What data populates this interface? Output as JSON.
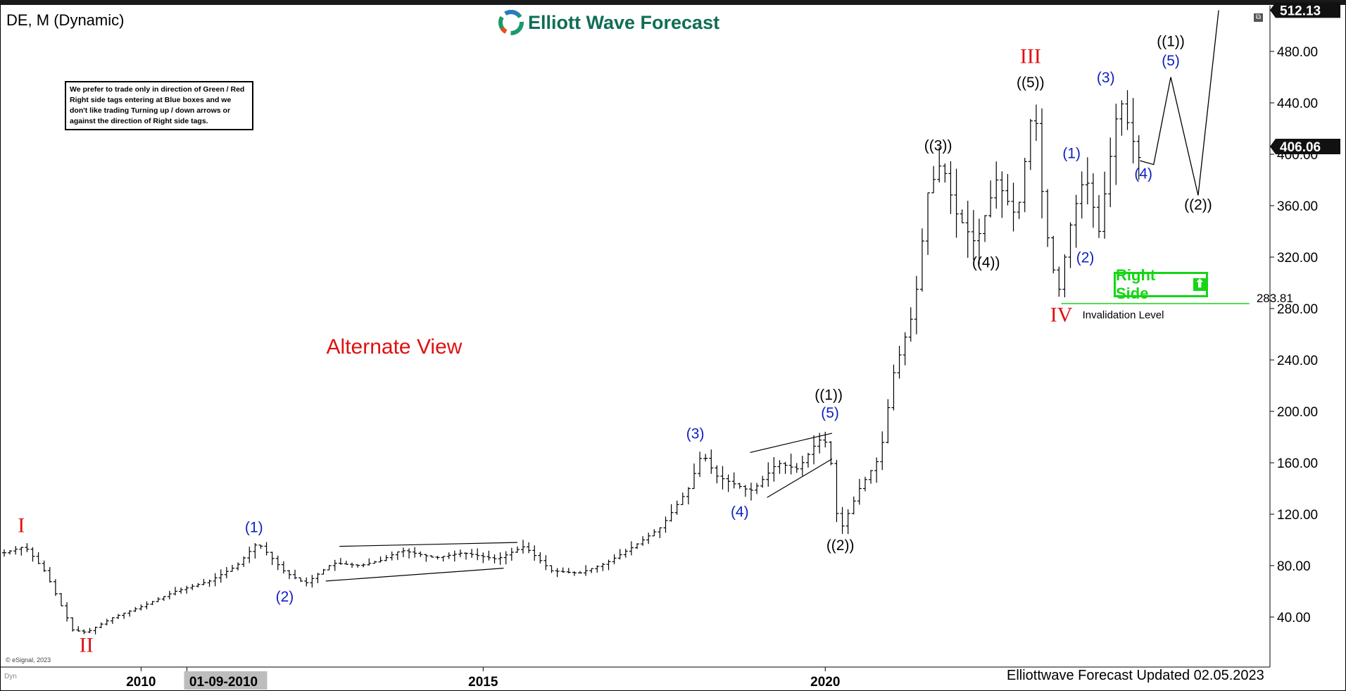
{
  "header": {
    "symbol": "DE, M (Dynamic)",
    "logo_text": "Elliott Wave Forecast"
  },
  "note": {
    "text": "We prefer to trade only in direction of Green / Red Right side tags entering at Blue boxes and we don't like trading Turning up / down arrows or against the direction of Right side tags."
  },
  "right_side_tag": {
    "label": "Right Side",
    "icon": "up-arrow-icon",
    "color": "#15d615"
  },
  "footer": {
    "copyright": "© eSignal, 2023",
    "dyn": "Dyn",
    "updated": "Elliottwave Forecast Updated 02.05.2023"
  },
  "colors": {
    "degree_red": "#e01010",
    "wave_blue": "#1020c0",
    "wave_black": "#000000",
    "invalidation_green": "#15d615",
    "bars": "#000000"
  },
  "chart_data": {
    "type": "line",
    "chart_kind": "monthly price bar chart (OHLC) with Elliott Wave labels",
    "title": "Alternate View",
    "xlabel": "",
    "ylabel": "",
    "x_ticks": [
      "2010",
      "01-09-2010",
      "2015",
      "2020"
    ],
    "x_tick_values": [
      2010.0,
      2010.67,
      2015.0,
      2020.0
    ],
    "xlim": [
      2008.0,
      2026.5
    ],
    "ylim": [
      0,
      520
    ],
    "y_ticks": [
      40,
      80,
      120,
      160,
      200,
      240,
      280,
      320,
      360,
      400,
      440,
      480
    ],
    "y_tick_labels": [
      "40.00",
      "80.00",
      "120.00",
      "160.00",
      "200.00",
      "240.00",
      "280.00",
      "320.00",
      "360.00",
      "400.00",
      "440.00",
      "480.00"
    ],
    "price_tags": [
      {
        "value": 512.13,
        "label": "512.13"
      },
      {
        "value": 406.06,
        "label": "406.06"
      }
    ],
    "price_path": [
      [
        2008.0,
        90
      ],
      [
        2008.3,
        95
      ],
      [
        2008.6,
        75
      ],
      [
        2009.0,
        30
      ],
      [
        2009.2,
        28
      ],
      [
        2009.6,
        40
      ],
      [
        2010.0,
        48
      ],
      [
        2010.5,
        60
      ],
      [
        2011.0,
        68
      ],
      [
        2011.4,
        80
      ],
      [
        2011.7,
        98
      ],
      [
        2012.1,
        75
      ],
      [
        2012.4,
        66
      ],
      [
        2012.8,
        82
      ],
      [
        2013.2,
        80
      ],
      [
        2013.5,
        84
      ],
      [
        2013.8,
        92
      ],
      [
        2014.3,
        86
      ],
      [
        2014.7,
        90
      ],
      [
        2015.2,
        85
      ],
      [
        2015.6,
        95
      ],
      [
        2016.0,
        76
      ],
      [
        2016.4,
        74
      ],
      [
        2016.8,
        82
      ],
      [
        2017.2,
        95
      ],
      [
        2017.6,
        110
      ],
      [
        2018.0,
        140
      ],
      [
        2018.2,
        168
      ],
      [
        2018.4,
        150
      ],
      [
        2018.9,
        138
      ],
      [
        2019.0,
        142
      ],
      [
        2019.3,
        160
      ],
      [
        2019.6,
        155
      ],
      [
        2019.9,
        178
      ],
      [
        2020.05,
        175
      ],
      [
        2020.2,
        105
      ],
      [
        2020.5,
        140
      ],
      [
        2020.8,
        165
      ],
      [
        2021.0,
        230
      ],
      [
        2021.3,
        280
      ],
      [
        2021.5,
        370
      ],
      [
        2021.7,
        395
      ],
      [
        2021.9,
        355
      ],
      [
        2022.2,
        330
      ],
      [
        2022.5,
        380
      ],
      [
        2022.8,
        350
      ],
      [
        2023.05,
        445
      ],
      [
        2023.2,
        350
      ],
      [
        2023.4,
        290
      ],
      [
        2023.6,
        350
      ],
      [
        2023.8,
        385
      ],
      [
        2024.0,
        340
      ],
      [
        2024.2,
        410
      ],
      [
        2024.3,
        445
      ],
      [
        2024.5,
        410
      ],
      [
        2024.6,
        395
      ]
    ],
    "projection_path": [
      [
        2024.8,
        392
      ],
      [
        2025.05,
        460
      ],
      [
        2025.45,
        368
      ],
      [
        2025.75,
        512
      ]
    ],
    "trendlines": [
      {
        "from": [
          2012.7,
          68
        ],
        "to": [
          2015.3,
          78
        ]
      },
      {
        "from": [
          2012.9,
          95
        ],
        "to": [
          2015.5,
          98
        ]
      },
      {
        "from": [
          2018.9,
          168
        ],
        "to": [
          2020.1,
          183
        ]
      },
      {
        "from": [
          2019.15,
          133
        ],
        "to": [
          2020.1,
          163
        ]
      }
    ],
    "invalidation": {
      "value": 283.81,
      "value_label": "283.81",
      "label": "Invalidation Level",
      "x_from": 2023.45,
      "x_to": 2026.2
    },
    "wave_labels": [
      {
        "text": "I",
        "x": 2008.25,
        "y": 106,
        "color": "red",
        "size": "big"
      },
      {
        "text": "II",
        "x": 2009.2,
        "y": 13,
        "color": "red",
        "size": "big"
      },
      {
        "text": "(1)",
        "x": 2011.65,
        "y": 106,
        "color": "blue"
      },
      {
        "text": "(2)",
        "x": 2012.1,
        "y": 52,
        "color": "blue"
      },
      {
        "text": "(3)",
        "x": 2018.1,
        "y": 179,
        "color": "blue"
      },
      {
        "text": "(4)",
        "x": 2018.75,
        "y": 118,
        "color": "blue"
      },
      {
        "text": "((1))",
        "x": 2020.05,
        "y": 209,
        "color": "black"
      },
      {
        "text": "(5)",
        "x": 2020.07,
        "y": 195,
        "color": "blue"
      },
      {
        "text": "((2))",
        "x": 2020.22,
        "y": 92,
        "color": "black"
      },
      {
        "text": "((3))",
        "x": 2021.65,
        "y": 403,
        "color": "black"
      },
      {
        "text": "((4))",
        "x": 2022.35,
        "y": 312,
        "color": "black"
      },
      {
        "text": "III",
        "x": 2023.0,
        "y": 471,
        "color": "red",
        "size": "big"
      },
      {
        "text": "((5))",
        "x": 2023.0,
        "y": 452,
        "color": "black"
      },
      {
        "text": "IV",
        "x": 2023.45,
        "y": 270,
        "color": "red",
        "size": "big"
      },
      {
        "text": "(1)",
        "x": 2023.6,
        "y": 397,
        "color": "blue"
      },
      {
        "text": "(2)",
        "x": 2023.8,
        "y": 316,
        "color": "blue"
      },
      {
        "text": "(3)",
        "x": 2024.1,
        "y": 456,
        "color": "blue"
      },
      {
        "text": "(4)",
        "x": 2024.65,
        "y": 381,
        "color": "blue"
      },
      {
        "text": "((1))",
        "x": 2025.05,
        "y": 484,
        "color": "black"
      },
      {
        "text": "(5)",
        "x": 2025.05,
        "y": 469,
        "color": "blue"
      },
      {
        "text": "((2))",
        "x": 2025.45,
        "y": 357,
        "color": "black"
      }
    ]
  }
}
